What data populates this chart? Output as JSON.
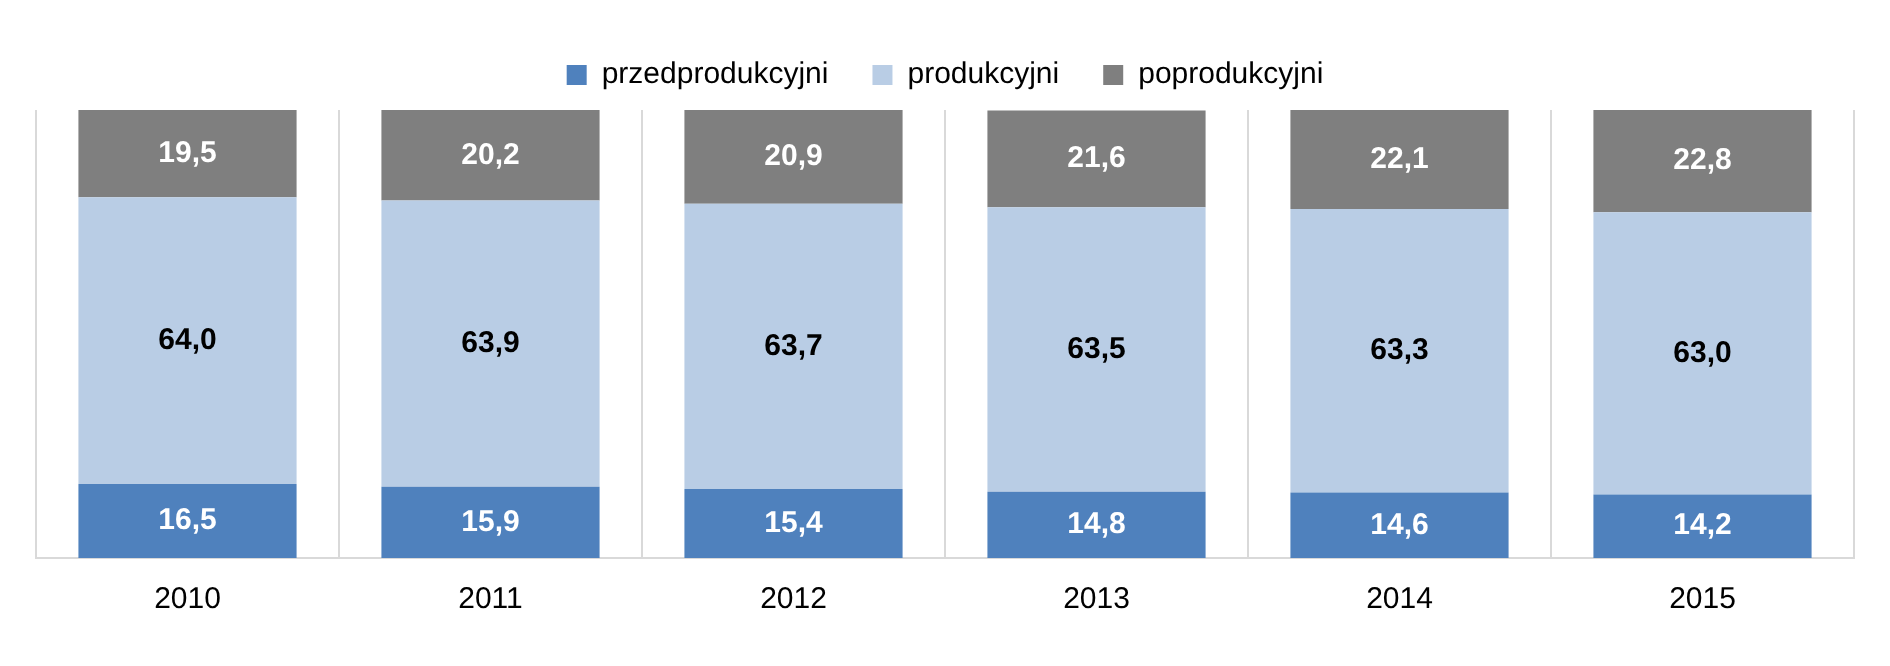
{
  "chart_data": {
    "type": "bar",
    "stacked": true,
    "categories": [
      "2010",
      "2011",
      "2012",
      "2013",
      "2014",
      "2015"
    ],
    "series": [
      {
        "name": "przedprodukcyjni",
        "color": "#4f81bd",
        "values": [
          16.5,
          15.9,
          15.4,
          14.8,
          14.6,
          14.2
        ],
        "value_labels": [
          "16,5",
          "15,9",
          "15,4",
          "14,8",
          "14,6",
          "14,2"
        ]
      },
      {
        "name": "produkcyjni",
        "color": "#b9cde5",
        "values": [
          64.0,
          63.9,
          63.7,
          63.5,
          63.3,
          63.0
        ],
        "value_labels": [
          "64,0",
          "63,9",
          "63,7",
          "63,5",
          "63,3",
          "63,0"
        ]
      },
      {
        "name": "poprodukcyjni",
        "color": "#7f7f7f",
        "values": [
          19.5,
          20.2,
          20.9,
          21.6,
          22.1,
          22.8
        ],
        "value_labels": [
          "19,5",
          "20,2",
          "20,9",
          "21,6",
          "22,1",
          "22,8"
        ]
      }
    ],
    "legend": "top",
    "grid": "x",
    "tick_labels": "x"
  }
}
